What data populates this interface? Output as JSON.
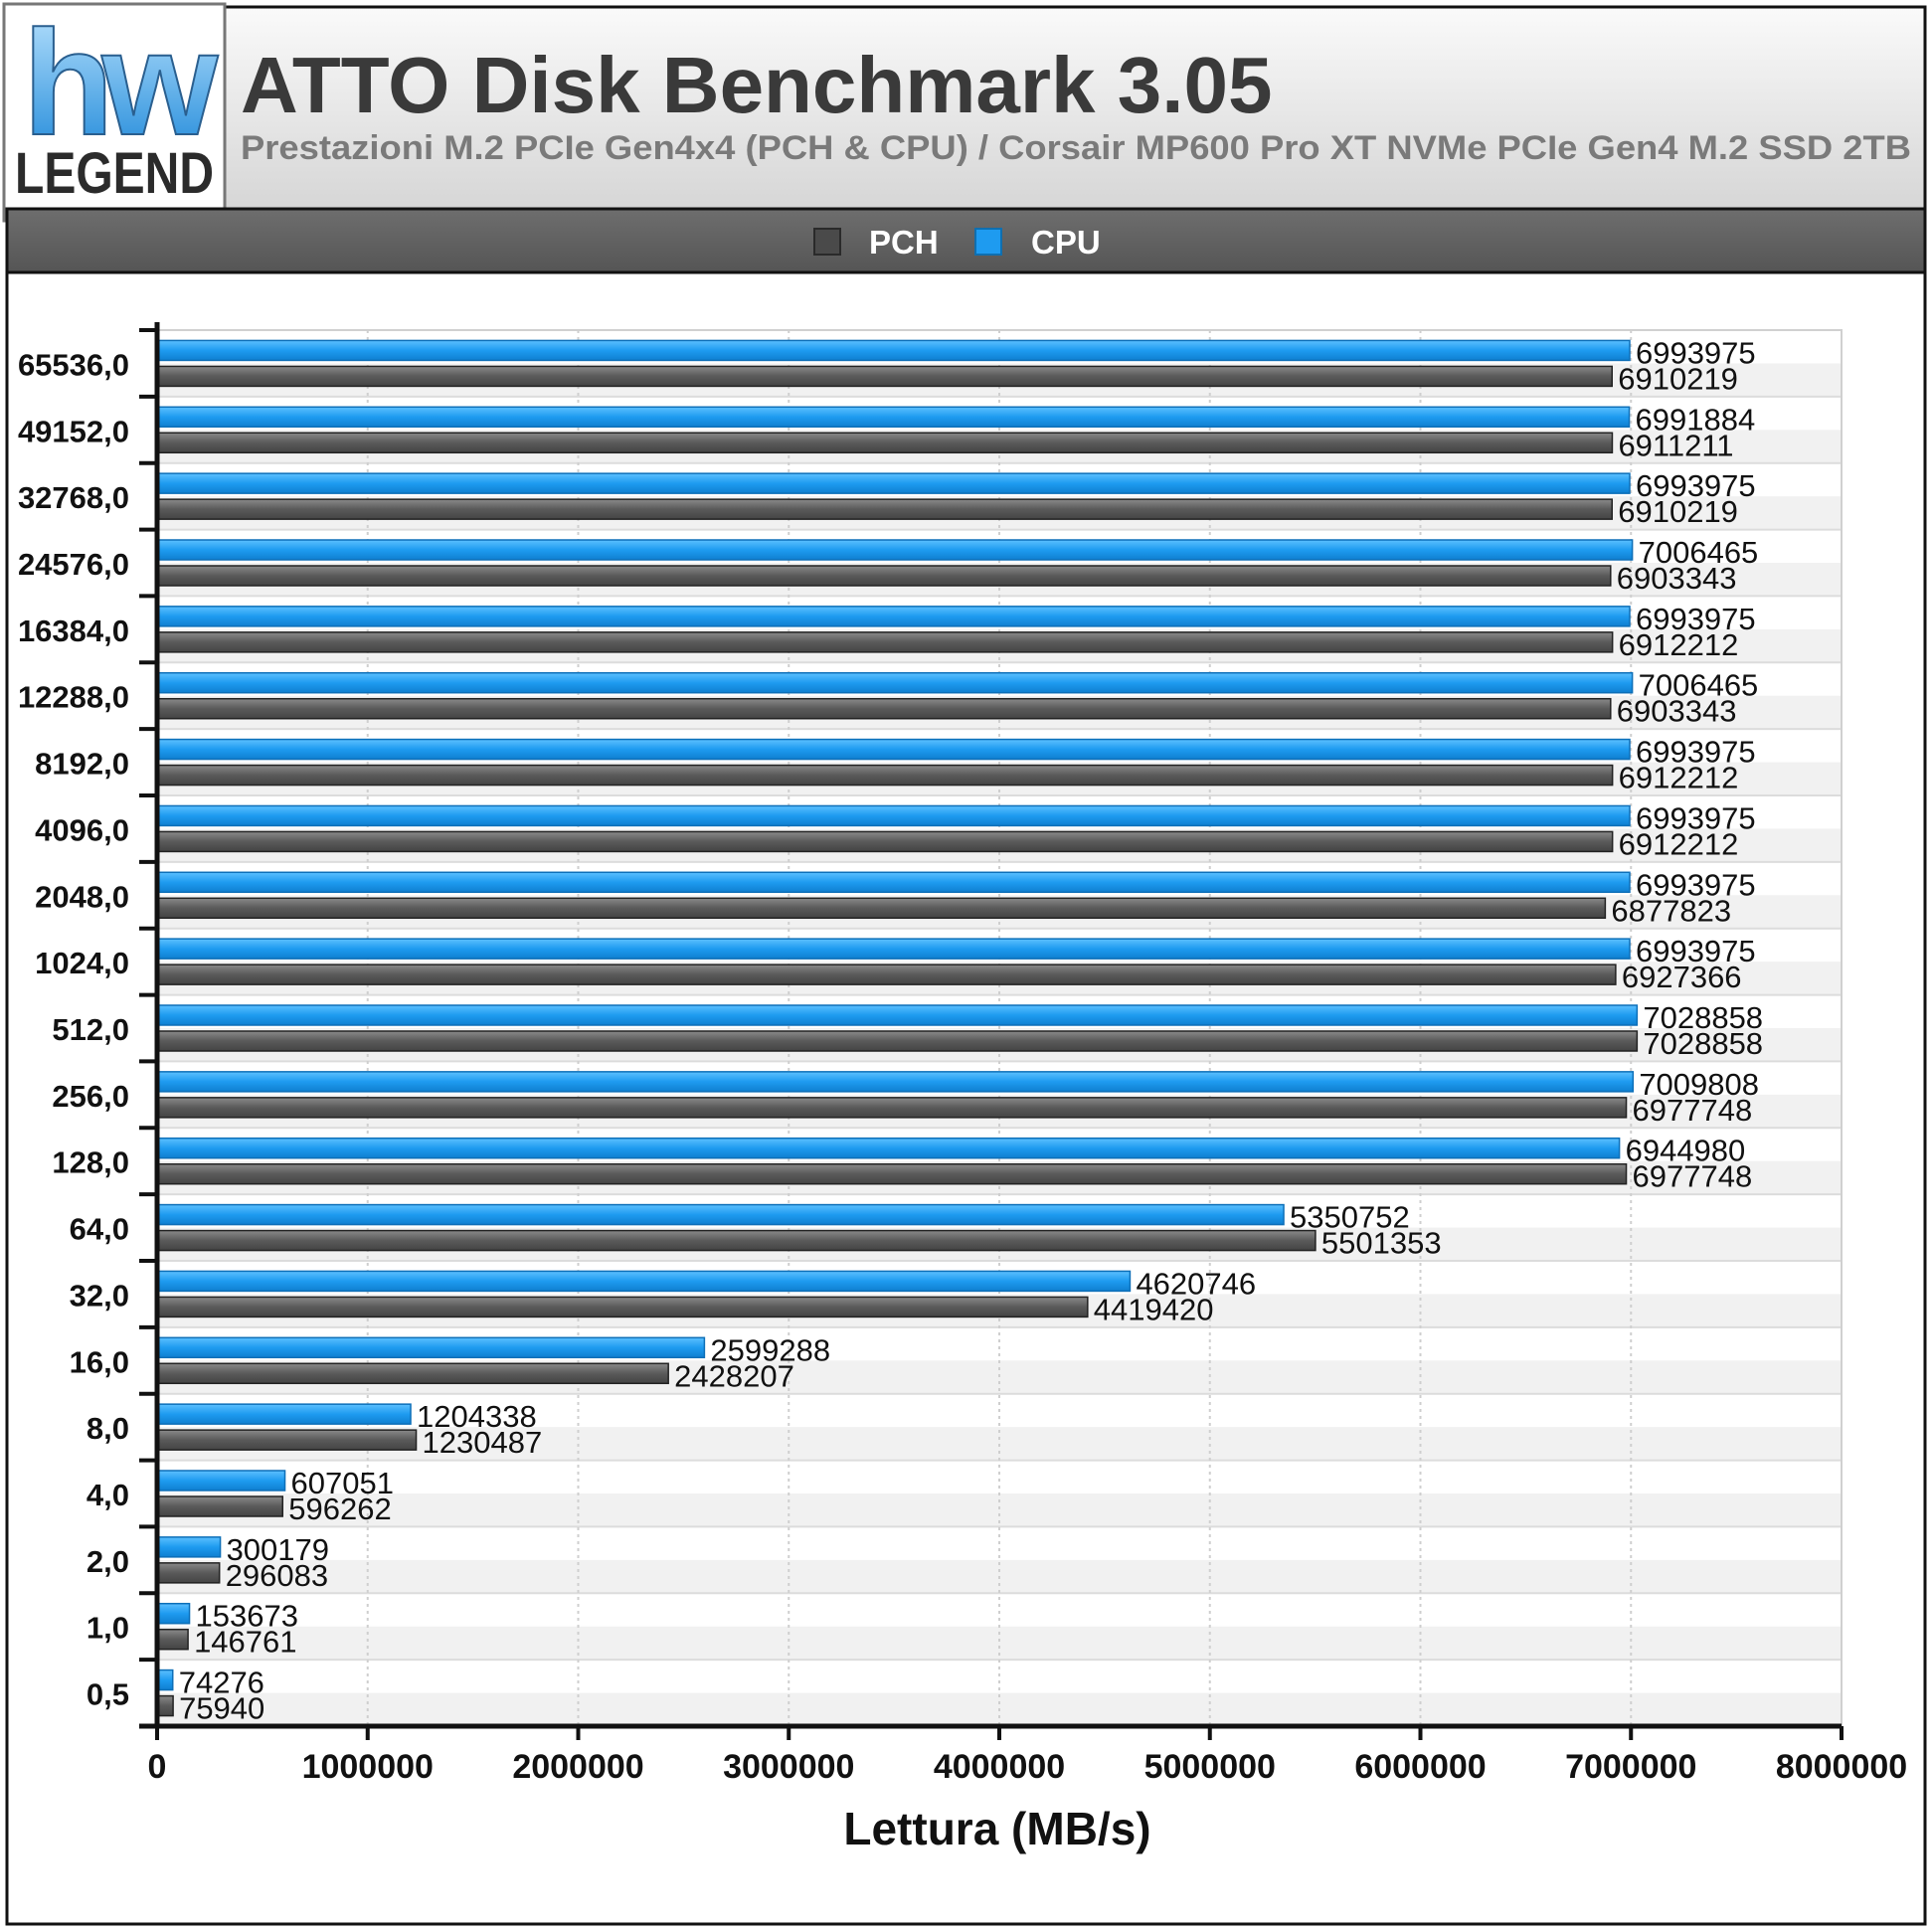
{
  "header": {
    "logo_top": "hw",
    "logo_bottom": "LEGEND",
    "title": "ATTO Disk Benchmark 3.05",
    "subtitle": "Prestazioni M.2 PCIe Gen4x4 (PCH & CPU) / Corsair MP600 Pro XT NVMe PCIe Gen4 M.2 SSD 2TB"
  },
  "legend": {
    "position": "top-center",
    "items": [
      {
        "label": "PCH",
        "color": "#5a5a5a"
      },
      {
        "label": "CPU",
        "color": "#1e9bf0"
      }
    ]
  },
  "chart_data": {
    "type": "bar",
    "orientation": "horizontal",
    "title": "ATTO Disk Benchmark 3.05",
    "subtitle": "Prestazioni M.2 PCIe Gen4x4 (PCH & CPU) / Corsair MP600 Pro XT NVMe PCIe Gen4 M.2 SSD 2TB",
    "xlabel": "Lettura (MB/s)",
    "ylabel": "",
    "xlim": [
      0,
      8000000
    ],
    "xticks": [
      "0",
      "1000000",
      "2000000",
      "3000000",
      "4000000",
      "5000000",
      "6000000",
      "7000000",
      "8000000"
    ],
    "grid": true,
    "categories": [
      "65536,0",
      "49152,0",
      "32768,0",
      "24576,0",
      "16384,0",
      "12288,0",
      "8192,0",
      "4096,0",
      "2048,0",
      "1024,0",
      "512,0",
      "256,0",
      "128,0",
      "64,0",
      "32,0",
      "16,0",
      "8,0",
      "4,0",
      "2,0",
      "1,0",
      "0,5"
    ],
    "series": [
      {
        "name": "CPU",
        "color": "#1e9bf0",
        "values": [
          6993975,
          6991884,
          6993975,
          7006465,
          6993975,
          7006465,
          6993975,
          6993975,
          6993975,
          6993975,
          7028858,
          7009808,
          6944980,
          5350752,
          4620746,
          2599288,
          1204338,
          607051,
          300179,
          153673,
          74276
        ]
      },
      {
        "name": "PCH",
        "color": "#5a5a5a",
        "values": [
          6910219,
          6911211,
          6910219,
          6903343,
          6912212,
          6903343,
          6912212,
          6912212,
          6877823,
          6927366,
          7028858,
          6977748,
          6977748,
          5501353,
          4419420,
          2428207,
          1230487,
          596262,
          296083,
          146761,
          75940
        ]
      }
    ]
  }
}
